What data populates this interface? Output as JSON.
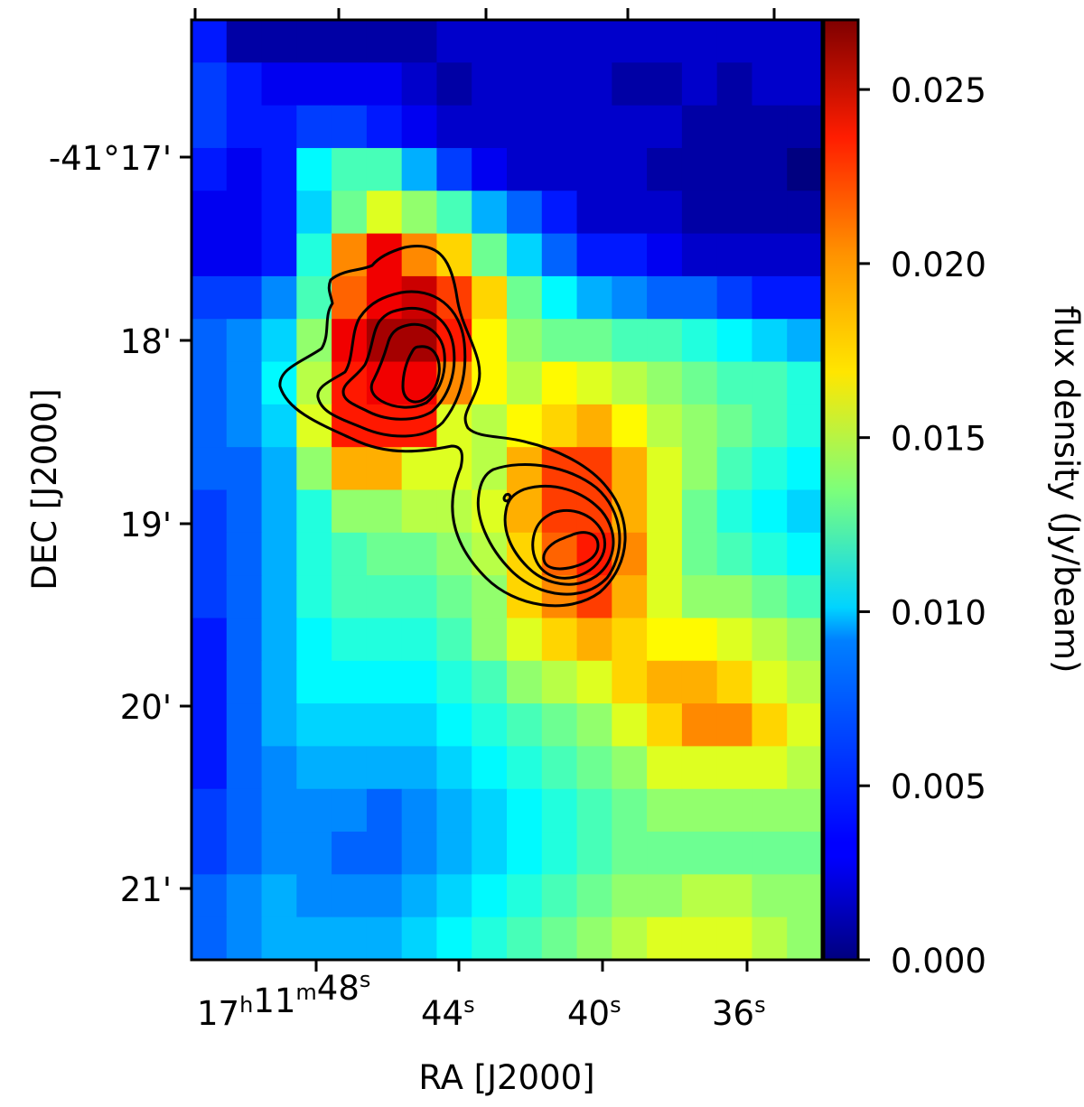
{
  "chart_data": {
    "type": "heatmap",
    "xlabel": "RA [J2000]",
    "ylabel": "DEC [J2000]",
    "colorbar_label": "flux density (Jy/beam)",
    "colormap": "jet",
    "clim": [
      0.0,
      0.027
    ],
    "x_ticks": [
      {
        "main": "17",
        "unit1": "h",
        "mid": "11",
        "unit2": "m",
        "last": "48",
        "unit3": "s"
      },
      {
        "main": "44",
        "unit1": "s"
      },
      {
        "main": "40",
        "unit1": "s"
      },
      {
        "main": "36",
        "unit1": "s"
      }
    ],
    "y_ticks": [
      "-41°17'",
      "18'",
      "19'",
      "20'",
      "21'"
    ],
    "colorbar_ticks": [
      "0.000",
      "0.005",
      "0.010",
      "0.015",
      "0.020",
      "0.025"
    ],
    "colorbar_tick_values": [
      0.0,
      0.005,
      0.01,
      0.015,
      0.02,
      0.025
    ],
    "grid": [
      [
        0.004,
        0.001,
        0.001,
        0.001,
        0.001,
        0.001,
        0.001,
        0.002,
        0.002,
        0.002,
        0.002,
        0.002,
        0.002,
        0.002,
        0.002,
        0.002,
        0.002,
        0.002
      ],
      [
        0.005,
        0.004,
        0.003,
        0.003,
        0.003,
        0.003,
        0.002,
        0.001,
        0.002,
        0.002,
        0.002,
        0.002,
        0.001,
        0.001,
        0.002,
        0.001,
        0.002,
        0.002
      ],
      [
        0.005,
        0.004,
        0.004,
        0.005,
        0.005,
        0.004,
        0.003,
        0.002,
        0.002,
        0.002,
        0.002,
        0.002,
        0.002,
        0.002,
        0.001,
        0.001,
        0.001,
        0.001
      ],
      [
        0.004,
        0.003,
        0.004,
        0.01,
        0.012,
        0.012,
        0.008,
        0.005,
        0.003,
        0.002,
        0.002,
        0.002,
        0.002,
        0.001,
        0.001,
        0.001,
        0.001,
        0.0
      ],
      [
        0.003,
        0.003,
        0.004,
        0.009,
        0.013,
        0.016,
        0.014,
        0.012,
        0.008,
        0.006,
        0.004,
        0.002,
        0.002,
        0.002,
        0.001,
        0.001,
        0.001,
        0.001
      ],
      [
        0.003,
        0.003,
        0.004,
        0.011,
        0.02,
        0.024,
        0.02,
        0.018,
        0.013,
        0.009,
        0.006,
        0.004,
        0.004,
        0.003,
        0.002,
        0.002,
        0.002,
        0.002
      ],
      [
        0.005,
        0.005,
        0.007,
        0.012,
        0.021,
        0.024,
        0.025,
        0.022,
        0.018,
        0.013,
        0.01,
        0.008,
        0.007,
        0.006,
        0.006,
        0.005,
        0.004,
        0.004
      ],
      [
        0.006,
        0.007,
        0.009,
        0.014,
        0.024,
        0.026,
        0.026,
        0.023,
        0.017,
        0.014,
        0.013,
        0.013,
        0.012,
        0.012,
        0.011,
        0.01,
        0.009,
        0.008
      ],
      [
        0.006,
        0.007,
        0.01,
        0.015,
        0.023,
        0.024,
        0.024,
        0.02,
        0.017,
        0.015,
        0.017,
        0.016,
        0.015,
        0.014,
        0.013,
        0.012,
        0.012,
        0.011
      ],
      [
        0.006,
        0.007,
        0.009,
        0.016,
        0.023,
        0.023,
        0.023,
        0.016,
        0.015,
        0.017,
        0.018,
        0.019,
        0.017,
        0.015,
        0.014,
        0.013,
        0.012,
        0.011
      ],
      [
        0.006,
        0.006,
        0.008,
        0.014,
        0.019,
        0.019,
        0.016,
        0.016,
        0.015,
        0.019,
        0.022,
        0.022,
        0.019,
        0.016,
        0.014,
        0.012,
        0.011,
        0.01
      ],
      [
        0.005,
        0.006,
        0.008,
        0.011,
        0.014,
        0.014,
        0.015,
        0.015,
        0.016,
        0.019,
        0.022,
        0.022,
        0.019,
        0.016,
        0.013,
        0.011,
        0.01,
        0.009
      ],
      [
        0.005,
        0.006,
        0.008,
        0.011,
        0.012,
        0.013,
        0.013,
        0.014,
        0.015,
        0.018,
        0.021,
        0.023,
        0.02,
        0.016,
        0.013,
        0.012,
        0.011,
        0.01
      ],
      [
        0.005,
        0.006,
        0.008,
        0.011,
        0.012,
        0.012,
        0.012,
        0.013,
        0.014,
        0.018,
        0.02,
        0.022,
        0.019,
        0.016,
        0.014,
        0.014,
        0.013,
        0.012
      ],
      [
        0.004,
        0.006,
        0.008,
        0.01,
        0.011,
        0.011,
        0.011,
        0.012,
        0.014,
        0.016,
        0.018,
        0.019,
        0.018,
        0.017,
        0.017,
        0.016,
        0.015,
        0.014
      ],
      [
        0.004,
        0.006,
        0.008,
        0.01,
        0.01,
        0.01,
        0.01,
        0.011,
        0.012,
        0.014,
        0.015,
        0.016,
        0.018,
        0.019,
        0.019,
        0.018,
        0.016,
        0.015
      ],
      [
        0.004,
        0.006,
        0.008,
        0.009,
        0.009,
        0.009,
        0.009,
        0.01,
        0.011,
        0.012,
        0.013,
        0.014,
        0.016,
        0.018,
        0.02,
        0.02,
        0.018,
        0.016
      ],
      [
        0.004,
        0.006,
        0.007,
        0.008,
        0.008,
        0.008,
        0.008,
        0.009,
        0.01,
        0.011,
        0.012,
        0.013,
        0.014,
        0.016,
        0.016,
        0.016,
        0.016,
        0.015
      ],
      [
        0.005,
        0.006,
        0.007,
        0.007,
        0.007,
        0.006,
        0.007,
        0.008,
        0.009,
        0.01,
        0.011,
        0.012,
        0.013,
        0.014,
        0.014,
        0.014,
        0.014,
        0.014
      ],
      [
        0.005,
        0.006,
        0.007,
        0.007,
        0.006,
        0.006,
        0.007,
        0.008,
        0.009,
        0.01,
        0.011,
        0.012,
        0.013,
        0.013,
        0.013,
        0.013,
        0.013,
        0.013
      ],
      [
        0.006,
        0.007,
        0.008,
        0.007,
        0.007,
        0.007,
        0.008,
        0.009,
        0.01,
        0.011,
        0.012,
        0.013,
        0.014,
        0.014,
        0.015,
        0.015,
        0.014,
        0.014
      ],
      [
        0.006,
        0.007,
        0.008,
        0.008,
        0.008,
        0.008,
        0.009,
        0.01,
        0.011,
        0.012,
        0.013,
        0.014,
        0.015,
        0.016,
        0.016,
        0.016,
        0.015,
        0.014
      ]
    ]
  }
}
